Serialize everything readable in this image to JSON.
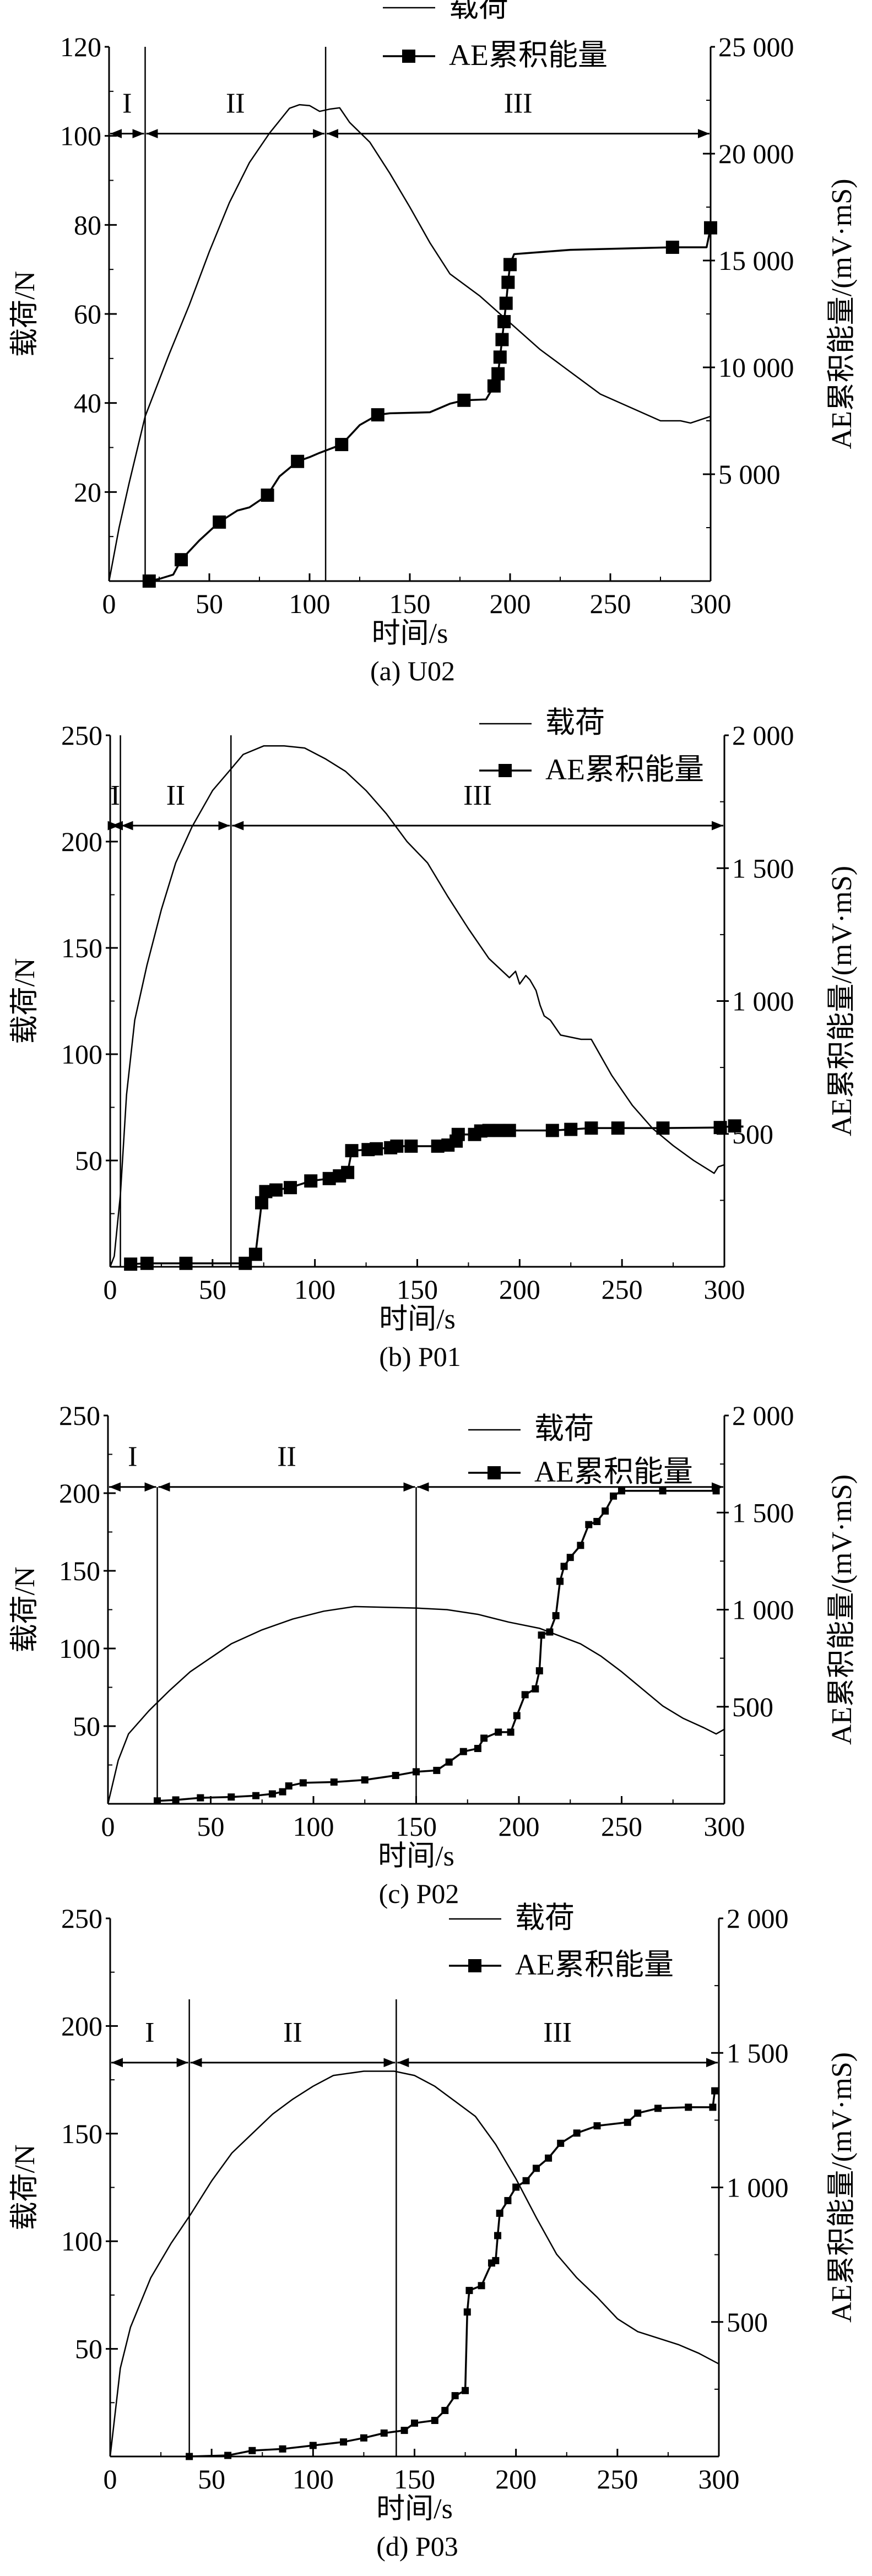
{
  "chart_data": [
    {
      "type": "line",
      "title": "(a) U02",
      "xlabel": "时间/s",
      "ylabel": "载荷/N",
      "y2label": "AE累积能量/(mV·mS)",
      "xlim": [
        0,
        300
      ],
      "ylim": [
        0,
        120
      ],
      "y2lim": [
        0,
        25000
      ],
      "xticks": [
        0,
        50,
        100,
        150,
        200,
        250,
        300
      ],
      "xtick_labels": [
        "0",
        "50",
        "100",
        "150",
        "200",
        "250",
        "300"
      ],
      "yticks": [
        20,
        40,
        60,
        80,
        100,
        120
      ],
      "ytick_labels": [
        "20",
        "40",
        "60",
        "80",
        "100",
        "120"
      ],
      "y2ticks": [
        5000,
        10000,
        15000,
        20000,
        25000
      ],
      "y2tick_labels": [
        "5 000",
        "10 000",
        "15 000",
        "20 000",
        "25 000"
      ],
      "legend": [
        "载荷",
        "AE累积能量"
      ],
      "legend_placement": "top-center",
      "phases": {
        "boundaries": [
          18,
          108
        ],
        "arrow_level": 100.5,
        "labels": [
          "I",
          "II",
          "III"
        ]
      },
      "series": [
        {
          "name": "载荷",
          "axis": "left",
          "x": [
            0,
            5,
            10,
            18,
            30,
            40,
            50,
            60,
            70,
            80,
            90,
            95,
            100,
            105,
            110,
            115,
            120,
            130,
            140,
            150,
            160,
            170,
            185,
            200,
            215,
            230,
            245,
            260,
            275,
            285,
            290,
            300
          ],
          "y": [
            0,
            12,
            22,
            37,
            51,
            62,
            74,
            85,
            94,
            100.6,
            106.2,
            107,
            106.8,
            105.5,
            106,
            106.3,
            103,
            98.6,
            91.6,
            84,
            76,
            69,
            64,
            58,
            52,
            47,
            42,
            39,
            36,
            36,
            35.5,
            37
          ]
        },
        {
          "name": "AE累积能量",
          "axis": "right",
          "x": [
            20,
            25,
            32,
            36,
            45,
            55,
            64,
            70,
            79,
            85,
            94,
            100,
            105,
            116,
            125,
            134,
            140,
            160,
            170,
            177,
            188,
            192,
            194,
            195,
            196,
            197,
            198,
            199,
            200,
            202,
            230,
            281,
            298,
            300
          ],
          "y": [
            0,
            100,
            300,
            1000,
            1900,
            2760,
            3300,
            3450,
            4020,
            4900,
            5600,
            5800,
            6000,
            6390,
            7300,
            7780,
            7850,
            7900,
            8300,
            8460,
            8500,
            9130,
            9700,
            10480,
            11300,
            12140,
            13000,
            13980,
            14810,
            15300,
            15500,
            15620,
            15620,
            16530
          ],
          "markers_at": [
            20,
            36,
            55,
            79,
            94,
            116,
            134,
            177,
            192,
            194,
            195,
            196,
            197,
            198,
            199,
            200,
            281,
            300
          ]
        }
      ]
    },
    {
      "type": "line",
      "title": "(b) P01",
      "xlabel": "时间/s",
      "ylabel": "载荷/N",
      "y2label": "AE累积能量/(mV·mS)",
      "xlim": [
        0,
        300
      ],
      "ylim": [
        0,
        250
      ],
      "y2lim": [
        0,
        2000
      ],
      "xticks": [
        0,
        50,
        100,
        150,
        200,
        250,
        300
      ],
      "xtick_labels": [
        "0",
        "50",
        "100",
        "150",
        "200",
        "250",
        "300"
      ],
      "yticks": [
        50,
        100,
        150,
        200,
        250
      ],
      "ytick_labels": [
        "50",
        "100",
        "150",
        "200",
        "250"
      ],
      "y2ticks": [
        500,
        1000,
        1500,
        2000
      ],
      "y2tick_labels": [
        "500",
        "1 000",
        "1 500",
        "2 000"
      ],
      "legend": [
        "载荷",
        "AE累积能量"
      ],
      "legend_placement": "top-right",
      "phases": {
        "boundaries": [
          5,
          59
        ],
        "arrow_level": 207.5,
        "labels": [
          "I",
          "II",
          "III"
        ]
      },
      "series": [
        {
          "name": "载荷",
          "axis": "left",
          "x": [
            0,
            2,
            5,
            8,
            12,
            18,
            25,
            32,
            40,
            50,
            58,
            65,
            75,
            85,
            95,
            105,
            115,
            125,
            135,
            145,
            155,
            165,
            175,
            185,
            195,
            198,
            200,
            203,
            205,
            208,
            210,
            212,
            215,
            220,
            225,
            230,
            235,
            245,
            255,
            265,
            275,
            285,
            295,
            297,
            300
          ],
          "y": [
            0,
            5,
            34,
            81,
            116,
            142,
            168,
            190,
            207,
            224,
            233,
            241,
            245,
            245,
            244,
            239,
            233,
            224,
            213,
            200,
            190,
            174,
            159,
            145,
            136,
            139,
            133,
            137,
            135,
            130,
            123,
            118,
            116,
            109,
            108,
            107,
            107,
            90,
            76,
            65,
            57,
            50,
            44,
            47,
            48
          ]
        },
        {
          "name": "AE累积能量",
          "axis": "right",
          "x": [
            10,
            18,
            37,
            66,
            71,
            74,
            76,
            81,
            88,
            98,
            107,
            112,
            116,
            118,
            126,
            130,
            137,
            140,
            147,
            160,
            165,
            169,
            170,
            178,
            181,
            185,
            190,
            195,
            216,
            225,
            235,
            248,
            270,
            298,
            305
          ],
          "y": [
            10,
            13,
            13,
            13,
            47,
            241,
            283,
            289,
            298,
            323,
            332,
            342,
            355,
            437,
            441,
            444,
            448,
            454,
            454,
            454,
            458,
            473,
            498,
            498,
            511,
            513,
            513,
            513,
            513,
            517,
            522,
            522,
            522,
            524,
            530
          ],
          "markers_at": "all"
        }
      ]
    },
    {
      "type": "line",
      "title": "(c) P02",
      "xlabel": "时间/s",
      "ylabel": "载荷/N",
      "y2label": "AE累积能量/(mV·mS)",
      "xlim": [
        0,
        300
      ],
      "ylim": [
        0,
        250
      ],
      "y2lim": [
        0,
        2000
      ],
      "xticks": [
        0,
        50,
        100,
        150,
        200,
        250,
        300
      ],
      "xtick_labels": [
        "0",
        "50",
        "100",
        "150",
        "200",
        "250",
        "300"
      ],
      "yticks": [
        50,
        100,
        150,
        200,
        250
      ],
      "ytick_labels": [
        "50",
        "100",
        "150",
        "200",
        "250"
      ],
      "y2ticks": [
        500,
        1000,
        1500,
        2000
      ],
      "y2tick_labels": [
        "500",
        "1 000",
        "1 500",
        "2 000"
      ],
      "legend": [
        "载荷",
        "AE累积能量"
      ],
      "legend_placement": "top-right",
      "phases": {
        "boundaries": [
          24,
          150
        ],
        "arrow_level": 204,
        "labels": [
          "I",
          "II"
        ]
      },
      "series": [
        {
          "name": "载荷",
          "axis": "left",
          "x": [
            0,
            5,
            10,
            20,
            30,
            40,
            50,
            60,
            75,
            90,
            105,
            120,
            135,
            150,
            165,
            180,
            195,
            210,
            220,
            230,
            240,
            250,
            260,
            270,
            280,
            285,
            290,
            296,
            300
          ],
          "y": [
            0,
            28,
            45,
            60,
            73,
            85,
            94,
            103,
            112,
            119,
            124,
            127,
            126.5,
            126,
            125,
            122,
            117,
            113,
            108,
            103,
            95,
            85,
            74,
            63,
            55,
            52,
            49,
            45,
            48
          ]
        },
        {
          "name": "AE累积能量",
          "axis": "right",
          "x": [
            24,
            33,
            45,
            60,
            72,
            80,
            85,
            88,
            95,
            110,
            125,
            140,
            150,
            160,
            166,
            173,
            180,
            183,
            190,
            196,
            199,
            203,
            208,
            210,
            211,
            215,
            218,
            220,
            222,
            225,
            230,
            234,
            238,
            242,
            246,
            250,
            270,
            296
          ],
          "y": [
            15,
            20,
            31,
            35,
            42,
            51,
            62,
            92,
            108,
            112,
            123,
            146,
            165,
            172,
            215,
            269,
            285,
            338,
            369,
            369,
            454,
            562,
            592,
            685,
            869,
            885,
            969,
            1146,
            1223,
            1269,
            1331,
            1438,
            1454,
            1508,
            1585,
            1612,
            1612,
            1612
          ],
          "markers_at": "all"
        }
      ]
    },
    {
      "type": "line",
      "title": "(d)  P03",
      "xlabel": "时间/s",
      "ylabel": "载荷/N",
      "y2label": "AE累积能量/(mV·mS)",
      "xlim": [
        0,
        300
      ],
      "ylim": [
        0,
        250
      ],
      "y2lim": [
        0,
        2000
      ],
      "xticks": [
        0,
        50,
        100,
        150,
        200,
        250,
        300
      ],
      "xtick_labels": [
        "0",
        "50",
        "100",
        "150",
        "200",
        "250",
        "300"
      ],
      "yticks": [
        50,
        100,
        150,
        200,
        250
      ],
      "ytick_labels": [
        "50",
        "100",
        "150",
        "200",
        "250"
      ],
      "y2ticks": [
        500,
        1000,
        1500,
        2000
      ],
      "y2tick_labels": [
        "500",
        "1 000",
        "1 500",
        "2 000"
      ],
      "legend": [
        "载荷",
        "AE累积能量"
      ],
      "legend_placement": "top-right",
      "phases": {
        "boundaries": [
          39,
          141
        ],
        "arrow_level": 183,
        "labels": [
          "I",
          "II",
          "III"
        ]
      },
      "series": [
        {
          "name": "载荷",
          "axis": "left",
          "x": [
            0,
            5,
            10,
            20,
            30,
            40,
            50,
            60,
            70,
            80,
            90,
            100,
            110,
            125,
            140,
            150,
            160,
            170,
            180,
            190,
            200,
            210,
            220,
            230,
            240,
            250,
            260,
            270,
            280,
            290,
            300
          ],
          "y": [
            0,
            41,
            60,
            83,
            99,
            113,
            128,
            141,
            150,
            159,
            166,
            172,
            177,
            179,
            179,
            177,
            172,
            165,
            158,
            145,
            129,
            111,
            94,
            83,
            74,
            64,
            58,
            55,
            52,
            48,
            43
          ]
        },
        {
          "name": "AE累积能量",
          "axis": "right",
          "x": [
            39,
            58,
            70,
            85,
            100,
            115,
            125,
            135,
            145,
            150,
            160,
            165,
            170,
            175,
            176,
            177,
            183,
            188,
            190,
            191,
            192,
            196,
            200,
            205,
            210,
            216,
            222,
            230,
            240,
            255,
            260,
            270,
            285,
            297,
            298
          ],
          "y": [
            0,
            4,
            22,
            28,
            41,
            54,
            69,
            87,
            97,
            124,
            134,
            171,
            226,
            245,
            537,
            617,
            635,
            719,
            728,
            821,
            904,
            951,
            1001,
            1025,
            1071,
            1109,
            1164,
            1202,
            1229,
            1242,
            1276,
            1294,
            1298,
            1298,
            1359
          ],
          "markers_at": "all"
        }
      ]
    }
  ]
}
